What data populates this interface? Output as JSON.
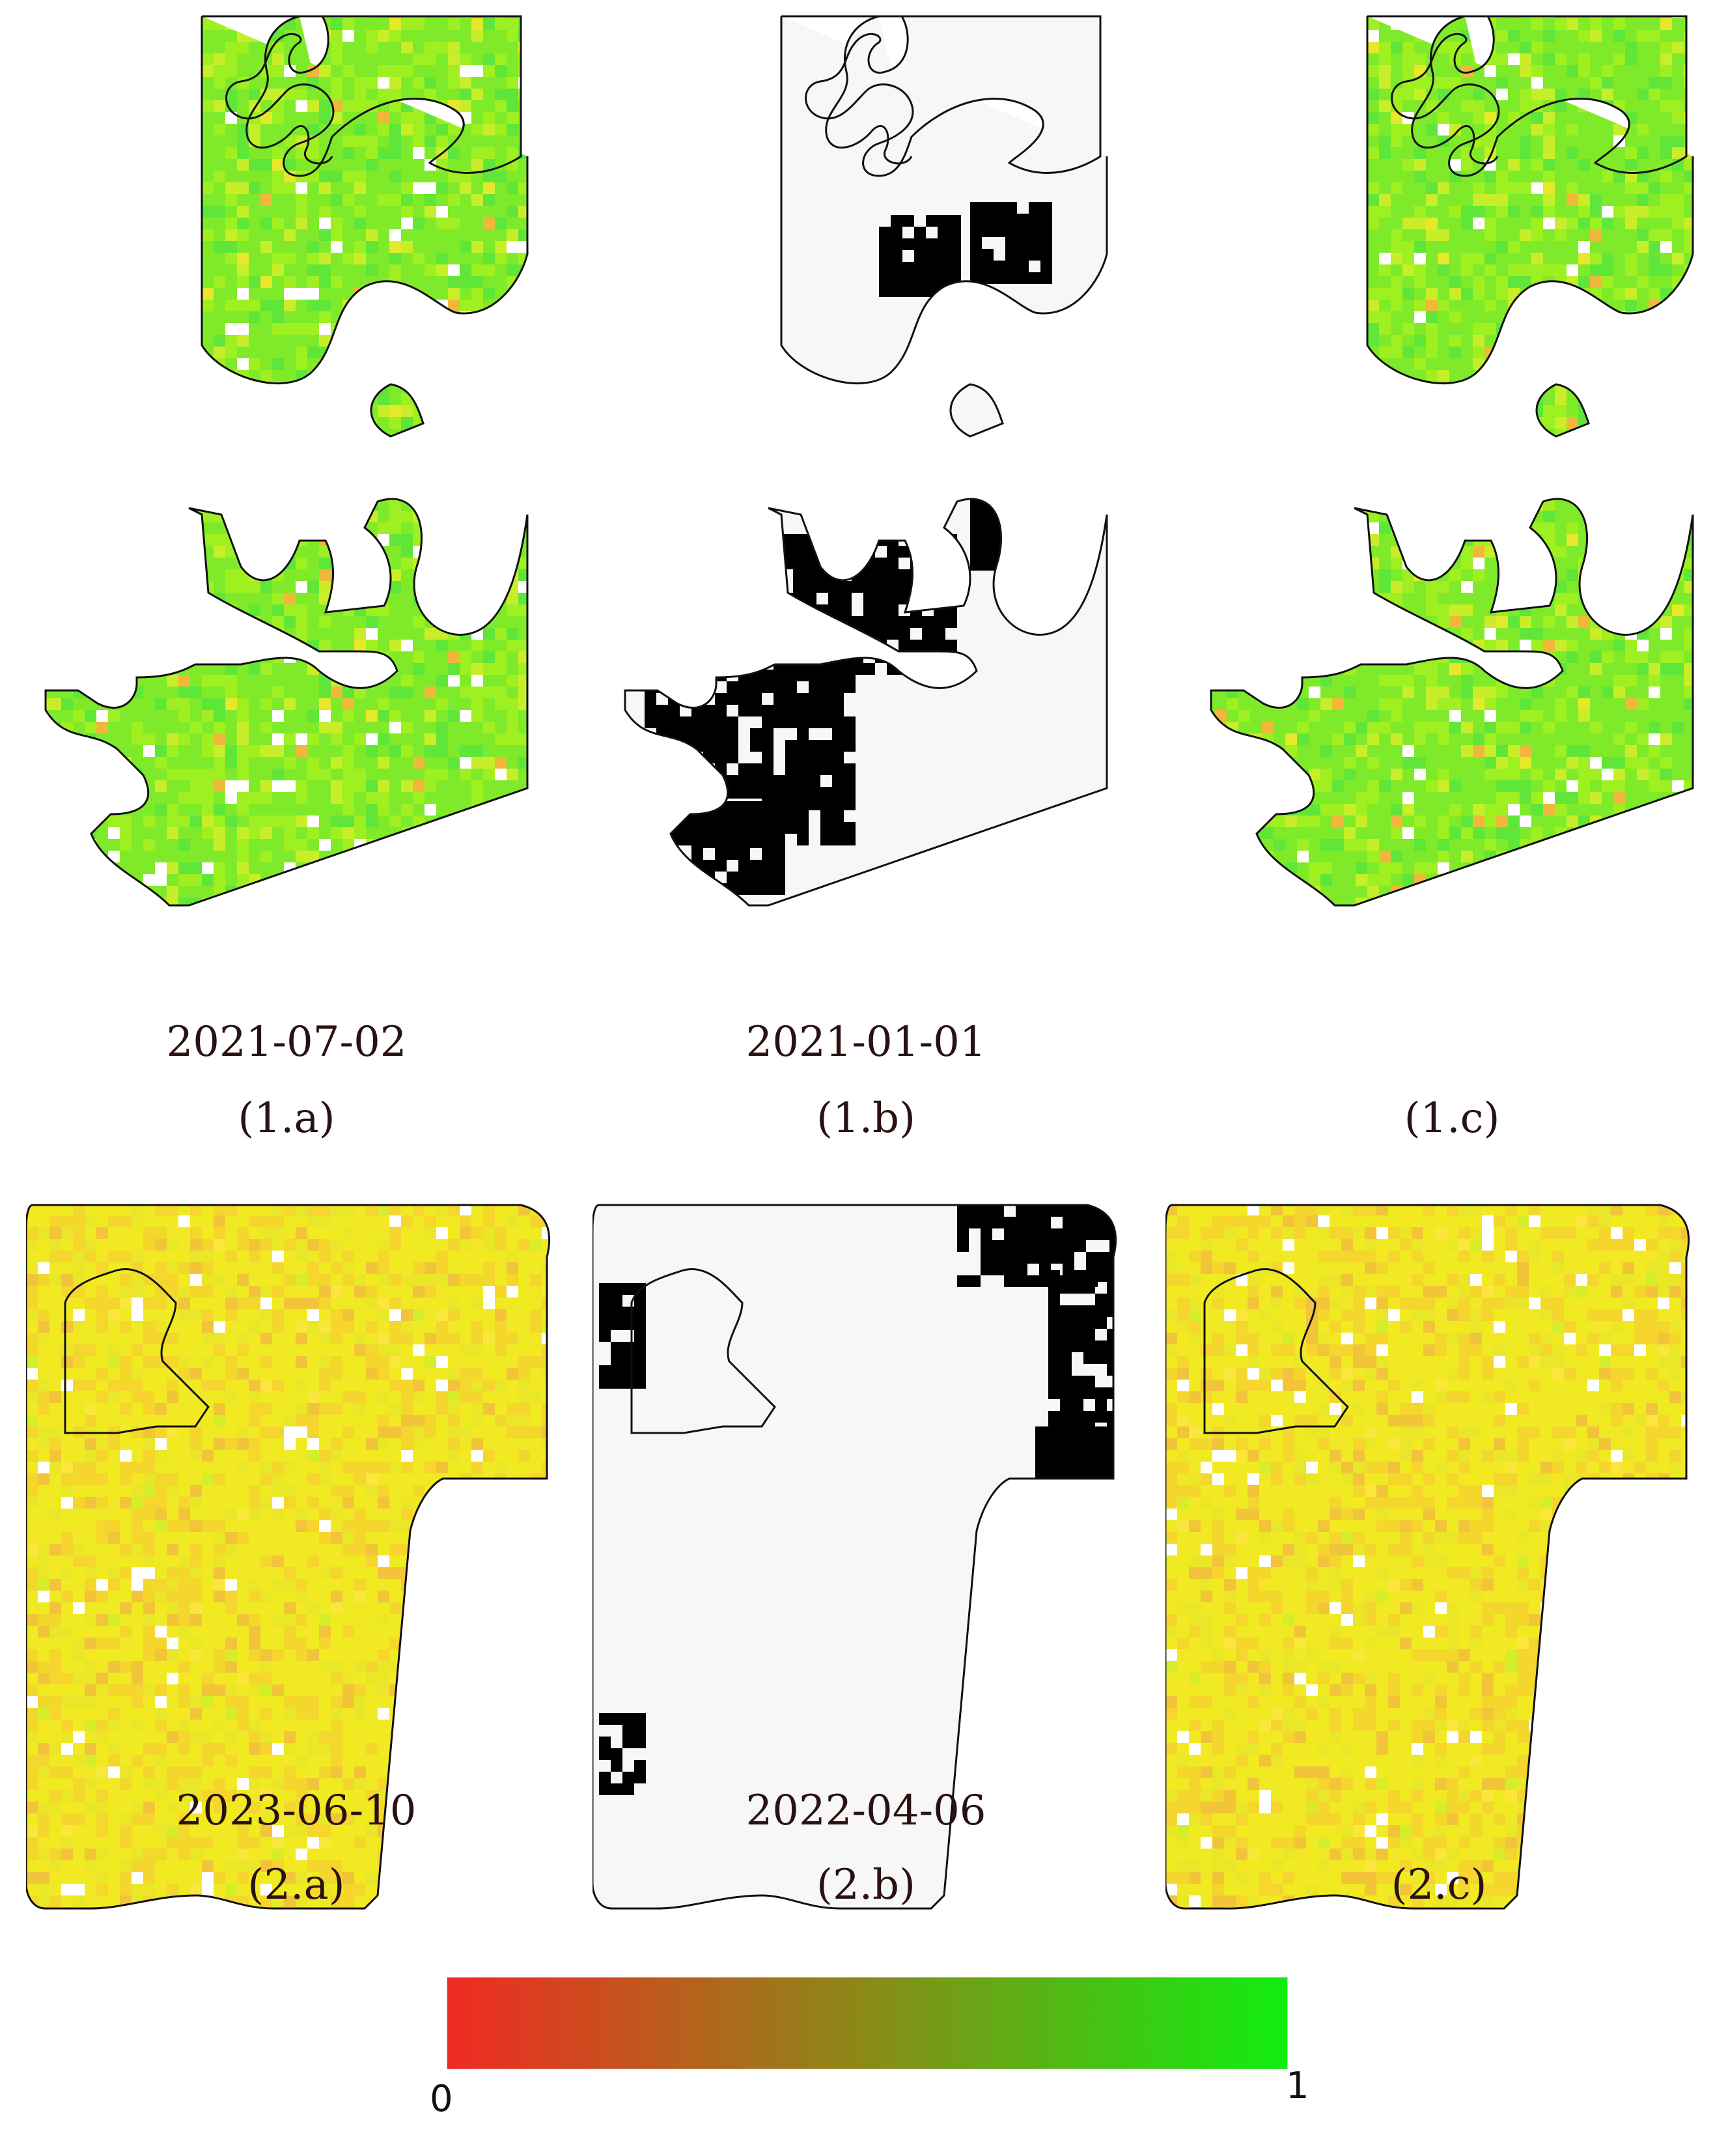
{
  "panels": [
    {
      "id": "1a",
      "date": "2021-07-02",
      "label": "(1.a)",
      "kind": "ndvi",
      "field": 1,
      "palette": "green"
    },
    {
      "id": "1b",
      "date": "2021-01-01",
      "label": "(1.b)",
      "kind": "mask",
      "field": 1
    },
    {
      "id": "1c",
      "date": "",
      "label": "(1.c)",
      "kind": "ndvi",
      "field": 1,
      "palette": "green"
    },
    {
      "id": "2a",
      "date": "2023-06-10",
      "label": "(2.a)",
      "kind": "ndvi",
      "field": 2,
      "palette": "yellow"
    },
    {
      "id": "2b",
      "date": "2022-04-06",
      "label": "(2.b)",
      "kind": "mask",
      "field": 2
    },
    {
      "id": "2c",
      "date": "",
      "label": "(2.c)",
      "kind": "ndvi",
      "field": 2,
      "palette": "yellow"
    }
  ],
  "colorbar": {
    "min_label": "0",
    "max_label": "1",
    "min_color": "#f02a23",
    "mid_color": "#8a8a18",
    "max_color": "#10ee10"
  },
  "colors": {
    "mask_cloud": "#000000",
    "mask_clear": "#f7f7f7",
    "outline": "#111111"
  }
}
